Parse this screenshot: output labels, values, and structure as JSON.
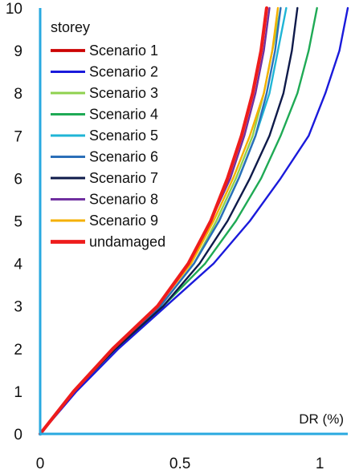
{
  "chart_data": {
    "type": "line",
    "title": "",
    "xlabel": "DR (%)",
    "ylabel": "storey",
    "xlim": [
      0,
      1.1
    ],
    "ylim": [
      0,
      10
    ],
    "x_ticks": [
      "0",
      "0.5",
      "1"
    ],
    "y_ticks": [
      "0",
      "1",
      "2",
      "3",
      "4",
      "5",
      "6",
      "7",
      "8",
      "9",
      "10"
    ],
    "grid": false,
    "legend_position": "top-left",
    "colors": {
      "axis": "#29a9e0"
    },
    "series": [
      {
        "name": "Scenario 1",
        "color": "#cc0000",
        "width": 3.2,
        "x": [
          0,
          0.12,
          0.26,
          0.42,
          0.53,
          0.61,
          0.67,
          0.72,
          0.76,
          0.79,
          0.81
        ],
        "y": [
          0,
          1,
          2,
          3,
          4,
          5,
          6,
          7,
          8,
          9,
          10
        ]
      },
      {
        "name": "Scenario 2",
        "color": "#1a1adb",
        "width": 2.4,
        "x": [
          0,
          0.13,
          0.28,
          0.45,
          0.62,
          0.75,
          0.86,
          0.96,
          1.02,
          1.07,
          1.1
        ],
        "y": [
          0,
          1,
          2,
          3,
          4,
          5,
          6,
          7,
          8,
          9,
          10
        ]
      },
      {
        "name": "Scenario 3",
        "color": "#8fd14f",
        "width": 2.4,
        "x": [
          0,
          0.12,
          0.27,
          0.43,
          0.55,
          0.63,
          0.7,
          0.76,
          0.8,
          0.83,
          0.86
        ],
        "y": [
          0,
          1,
          2,
          3,
          4,
          5,
          6,
          7,
          8,
          9,
          10
        ]
      },
      {
        "name": "Scenario 4",
        "color": "#1faa55",
        "width": 2.4,
        "x": [
          0,
          0.12,
          0.27,
          0.44,
          0.59,
          0.7,
          0.79,
          0.86,
          0.92,
          0.96,
          0.99
        ],
        "y": [
          0,
          1,
          2,
          3,
          4,
          5,
          6,
          7,
          8,
          9,
          10
        ]
      },
      {
        "name": "Scenario 5",
        "color": "#1fb5d6",
        "width": 2.4,
        "x": [
          0,
          0.12,
          0.27,
          0.43,
          0.55,
          0.64,
          0.71,
          0.77,
          0.82,
          0.85,
          0.88
        ],
        "y": [
          0,
          1,
          2,
          3,
          4,
          5,
          6,
          7,
          8,
          9,
          10
        ]
      },
      {
        "name": "Scenario 6",
        "color": "#2b6fb8",
        "width": 2.4,
        "x": [
          0,
          0.12,
          0.27,
          0.43,
          0.55,
          0.64,
          0.71,
          0.77,
          0.81,
          0.84,
          0.86
        ],
        "y": [
          0,
          1,
          2,
          3,
          4,
          5,
          6,
          7,
          8,
          9,
          10
        ]
      },
      {
        "name": "Scenario 7",
        "color": "#0e1a4a",
        "width": 2.4,
        "x": [
          0,
          0.12,
          0.27,
          0.44,
          0.57,
          0.67,
          0.75,
          0.82,
          0.87,
          0.9,
          0.92
        ],
        "y": [
          0,
          1,
          2,
          3,
          4,
          5,
          6,
          7,
          8,
          9,
          10
        ]
      },
      {
        "name": "Scenario 8",
        "color": "#7030a0",
        "width": 2.4,
        "x": [
          0,
          0.12,
          0.26,
          0.42,
          0.53,
          0.61,
          0.68,
          0.73,
          0.77,
          0.8,
          0.82
        ],
        "y": [
          0,
          1,
          2,
          3,
          4,
          5,
          6,
          7,
          8,
          9,
          10
        ]
      },
      {
        "name": "Scenario 9",
        "color": "#f5b000",
        "width": 2.4,
        "x": [
          0,
          0.12,
          0.26,
          0.42,
          0.54,
          0.62,
          0.69,
          0.75,
          0.8,
          0.83,
          0.85
        ],
        "y": [
          0,
          1,
          2,
          3,
          4,
          5,
          6,
          7,
          8,
          9,
          10
        ]
      },
      {
        "name": "undamaged",
        "color": "#ee1c1c",
        "width": 4.2,
        "x": [
          0,
          0.12,
          0.26,
          0.42,
          0.53,
          0.61,
          0.67,
          0.72,
          0.76,
          0.79,
          0.81
        ],
        "y": [
          0,
          1,
          2,
          3,
          4,
          5,
          6,
          7,
          8,
          9,
          10
        ]
      }
    ]
  }
}
